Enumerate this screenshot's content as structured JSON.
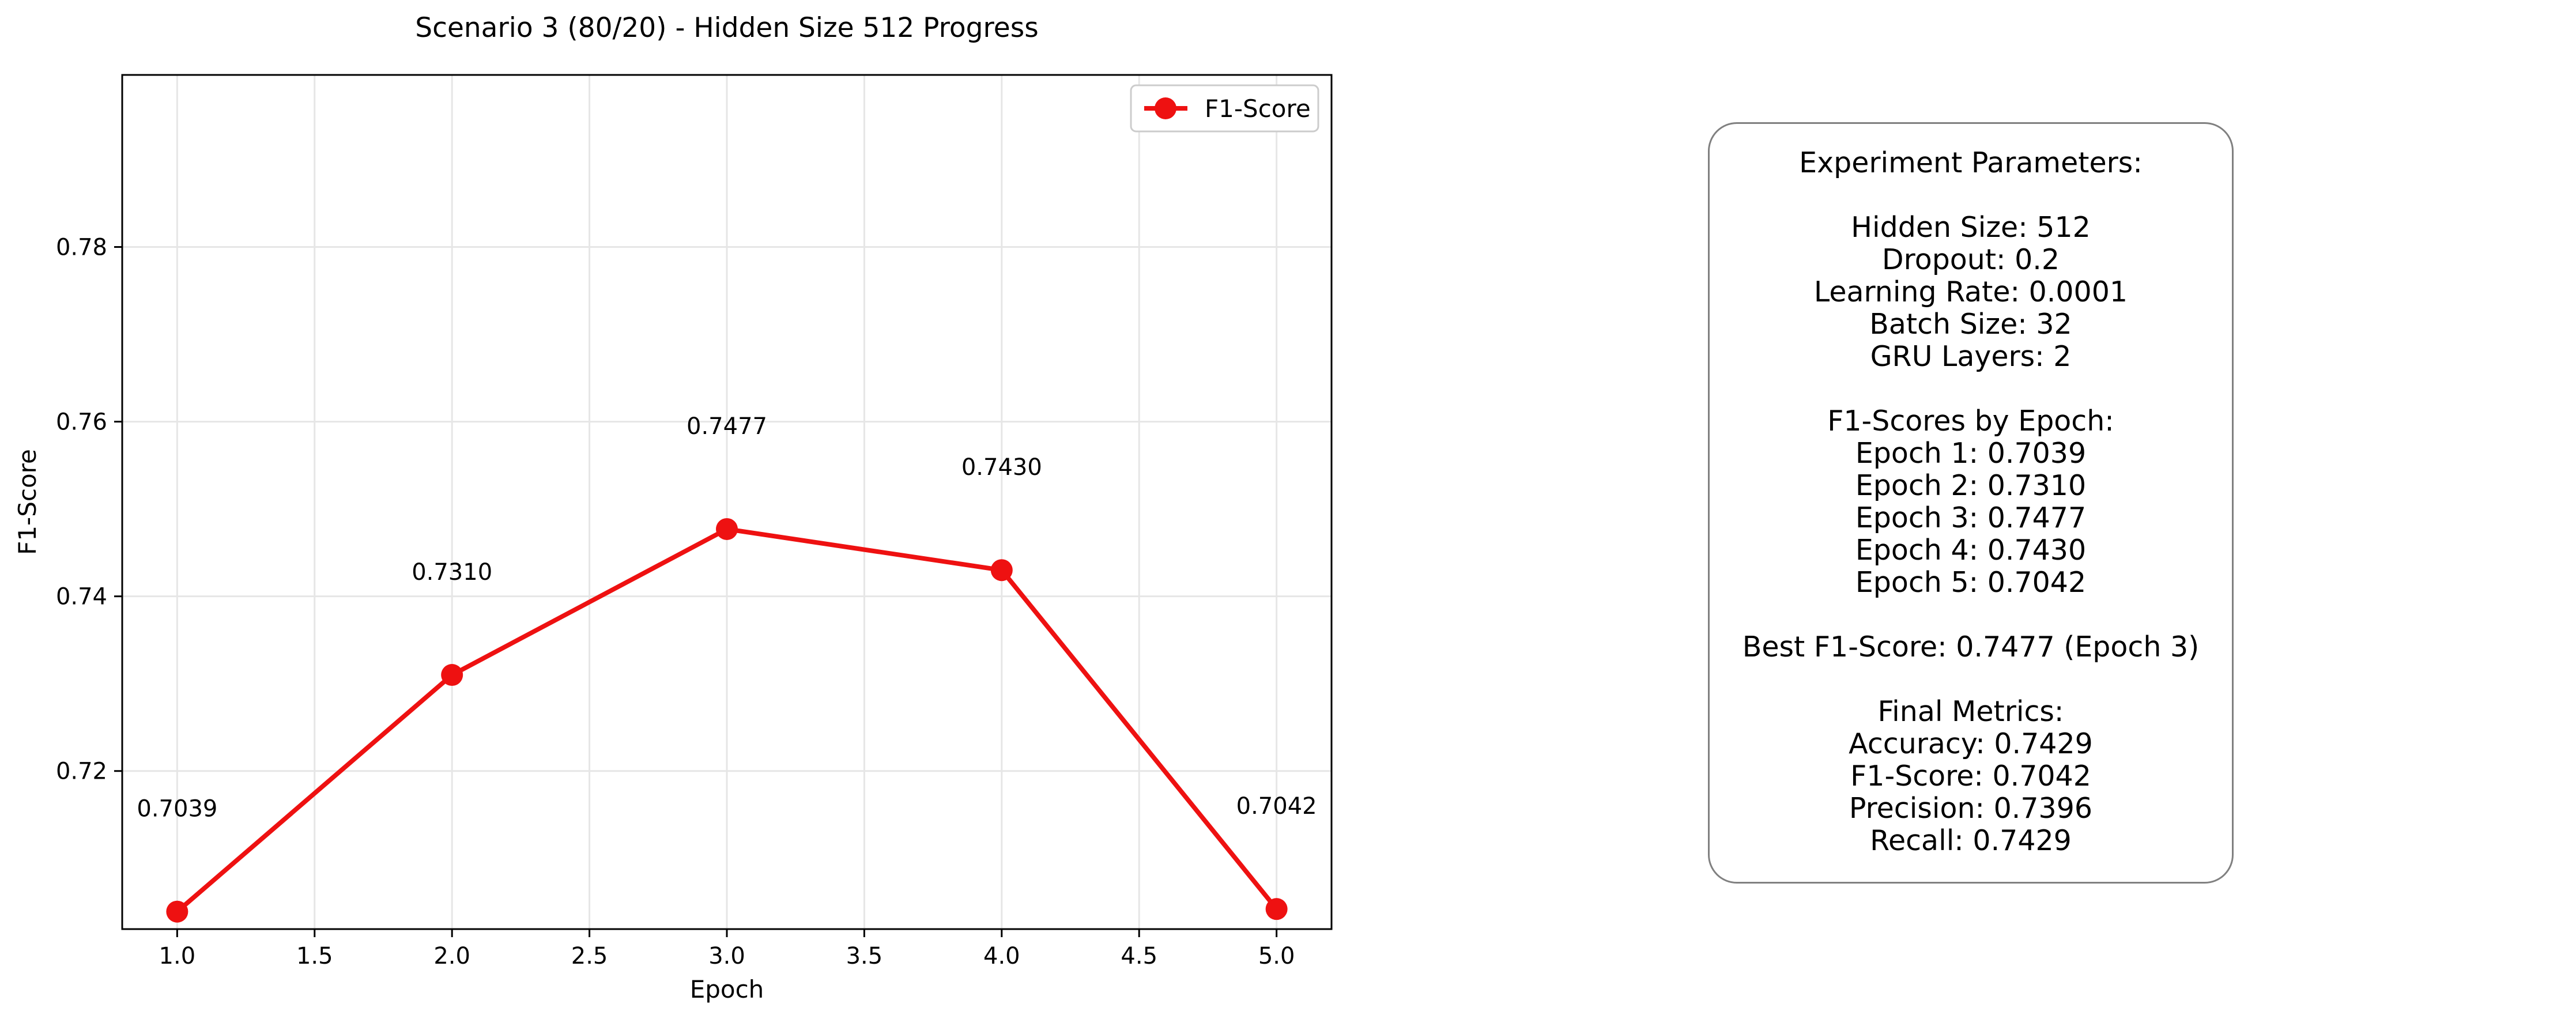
{
  "chart_data": {
    "type": "line",
    "title": "Scenario 3 (80/20) - Hidden Size 512 Progress",
    "xlabel": "Epoch",
    "ylabel": "F1-Score",
    "x": [
      1,
      2,
      3,
      4,
      5
    ],
    "series": [
      {
        "name": "F1-Score",
        "color": "#ee1111",
        "values": [
          0.7039,
          0.731,
          0.7477,
          0.743,
          0.7042
        ]
      }
    ],
    "data_labels": [
      "0.7039",
      "0.7310",
      "0.7477",
      "0.7430",
      "0.7042"
    ],
    "xlim": [
      0.8,
      5.2
    ],
    "ylim": [
      0.7019,
      0.7997
    ],
    "xticks": [
      1.0,
      1.5,
      2.0,
      2.5,
      3.0,
      3.5,
      4.0,
      4.5,
      5.0
    ],
    "xtick_labels": [
      "1.0",
      "1.5",
      "2.0",
      "2.5",
      "3.0",
      "3.5",
      "4.0",
      "4.5",
      "5.0"
    ],
    "yticks": [
      0.72,
      0.74,
      0.76,
      0.78
    ],
    "ytick_labels": [
      "0.72",
      "0.74",
      "0.76",
      "0.78"
    ],
    "grid": true,
    "legend": "top-right"
  },
  "params_panel": {
    "title": "Experiment Parameters:",
    "hidden_size": "Hidden Size: 512",
    "dropout": "Dropout: 0.2",
    "learning_rate": "Learning Rate: 0.0001",
    "batch_size": "Batch Size: 32",
    "gru_layers": "GRU Layers: 2",
    "f1_heading": "F1-Scores by Epoch:",
    "epochs": [
      "Epoch 1: 0.7039",
      "Epoch 2: 0.7310",
      "Epoch 3: 0.7477",
      "Epoch 4: 0.7430",
      "Epoch 5: 0.7042"
    ],
    "best": "Best F1-Score: 0.7477 (Epoch 3)",
    "final_heading": "Final Metrics:",
    "accuracy": "Accuracy: 0.7429",
    "f1_score": "F1-Score: 0.7042",
    "precision": "Precision: 0.7396",
    "recall": "Recall: 0.7429"
  }
}
